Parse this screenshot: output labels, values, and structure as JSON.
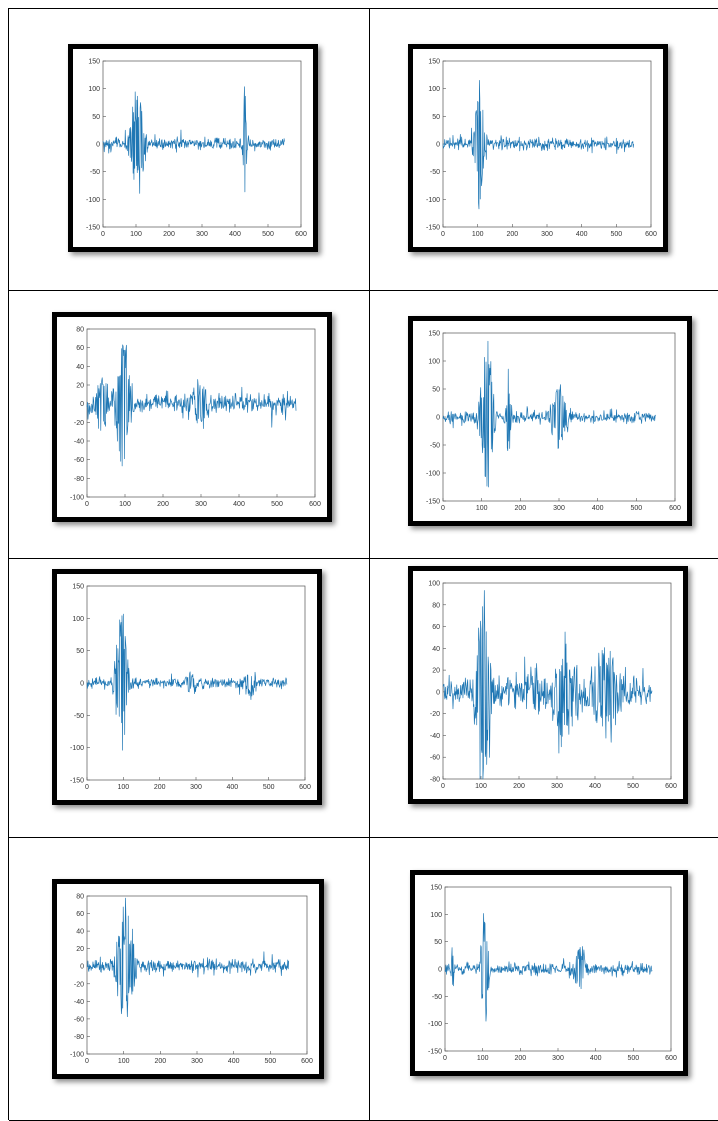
{
  "style": {
    "series_color": "#1f77b4",
    "frame_color": "#000000",
    "axes_color": "#555555"
  },
  "chart_data": [
    {
      "type": "line",
      "xlim": [
        0,
        600
      ],
      "ylim": [
        -150,
        150
      ],
      "x_ticks": [
        "0",
        "100",
        "200",
        "300",
        "400",
        "500",
        "600"
      ],
      "y_ticks": [
        "150",
        "100",
        "50",
        "0",
        "-50",
        "-100",
        "-150"
      ],
      "series": [
        {
          "x_range": [
            0,
            550
          ],
          "noise": 9,
          "events": [
            [
              105,
              105,
              25
            ],
            [
              430,
              115,
              6
            ]
          ]
        }
      ]
    },
    {
      "type": "line",
      "xlim": [
        0,
        600
      ],
      "ylim": [
        -150,
        150
      ],
      "x_ticks": [
        "0",
        "100",
        "200",
        "300",
        "400",
        "500",
        "600"
      ],
      "y_ticks": [
        "150",
        "100",
        "50",
        "0",
        "-50",
        "-100",
        "-150"
      ],
      "series": [
        {
          "x_range": [
            0,
            550
          ],
          "noise": 8,
          "events": [
            [
              105,
              125,
              18
            ]
          ]
        }
      ]
    },
    {
      "type": "line",
      "xlim": [
        0,
        600
      ],
      "ylim": [
        -100,
        80
      ],
      "x_ticks": [
        "0",
        "100",
        "200",
        "300",
        "400",
        "500",
        "600"
      ],
      "y_ticks": [
        "80",
        "60",
        "40",
        "20",
        "0",
        "-20",
        "-40",
        "-60",
        "-80",
        "-100"
      ],
      "series": [
        {
          "x_range": [
            0,
            550
          ],
          "noise": 8,
          "events": [
            [
              40,
              30,
              25
            ],
            [
              95,
              78,
              22
            ],
            [
              300,
              28,
              25
            ]
          ]
        }
      ]
    },
    {
      "type": "line",
      "xlim": [
        0,
        600
      ],
      "ylim": [
        -150,
        150
      ],
      "x_ticks": [
        "0",
        "100",
        "200",
        "300",
        "400",
        "500",
        "600"
      ],
      "y_ticks": [
        "150",
        "100",
        "50",
        "0",
        "-50",
        "-100",
        "-150"
      ],
      "series": [
        {
          "x_range": [
            0,
            550
          ],
          "noise": 9,
          "events": [
            [
              115,
              128,
              22
            ],
            [
              170,
              110,
              6
            ],
            [
              300,
              65,
              25
            ]
          ]
        }
      ]
    },
    {
      "type": "line",
      "xlim": [
        0,
        600
      ],
      "ylim": [
        -150,
        150
      ],
      "x_ticks": [
        "0",
        "100",
        "200",
        "300",
        "400",
        "500",
        "600"
      ],
      "y_ticks": [
        "150",
        "100",
        "50",
        "0",
        "-50",
        "-100",
        "-150"
      ],
      "series": [
        {
          "x_range": [
            0,
            550
          ],
          "noise": 6,
          "events": [
            [
              95,
              125,
              20
            ],
            [
              285,
              18,
              20
            ],
            [
              450,
              25,
              20
            ]
          ]
        }
      ]
    },
    {
      "type": "line",
      "xlim": [
        0,
        600
      ],
      "ylim": [
        -80,
        100
      ],
      "x_ticks": [
        "0",
        "100",
        "200",
        "300",
        "400",
        "500",
        "600"
      ],
      "y_ticks": [
        "100",
        "80",
        "60",
        "40",
        "20",
        "0",
        "-20",
        "-40",
        "-60",
        "-80"
      ],
      "series": [
        {
          "x_range": [
            0,
            550
          ],
          "noise": 13,
          "events": [
            [
              105,
              95,
              25
            ],
            [
              320,
              40,
              40
            ],
            [
              430,
              38,
              45
            ]
          ]
        }
      ]
    },
    {
      "type": "line",
      "xlim": [
        0,
        600
      ],
      "ylim": [
        -100,
        80
      ],
      "x_ticks": [
        "0",
        "100",
        "200",
        "300",
        "400",
        "500",
        "600"
      ],
      "y_ticks": [
        "80",
        "60",
        "40",
        "20",
        "0",
        "-20",
        "-40",
        "-60",
        "-80",
        "-100"
      ],
      "series": [
        {
          "x_range": [
            0,
            550
          ],
          "noise": 6,
          "events": [
            [
              105,
              82,
              28
            ]
          ]
        }
      ]
    },
    {
      "type": "line",
      "xlim": [
        0,
        600
      ],
      "ylim": [
        -150,
        150
      ],
      "x_ticks": [
        "0",
        "100",
        "200",
        "300",
        "400",
        "500",
        "600"
      ],
      "y_ticks": [
        "150",
        "100",
        "50",
        "0",
        "-50",
        "-100",
        "-150"
      ],
      "series": [
        {
          "x_range": [
            0,
            550
          ],
          "noise": 8,
          "events": [
            [
              105,
              125,
              12
            ],
            [
              20,
              50,
              6
            ],
            [
              360,
              45,
              20
            ]
          ]
        }
      ]
    }
  ]
}
